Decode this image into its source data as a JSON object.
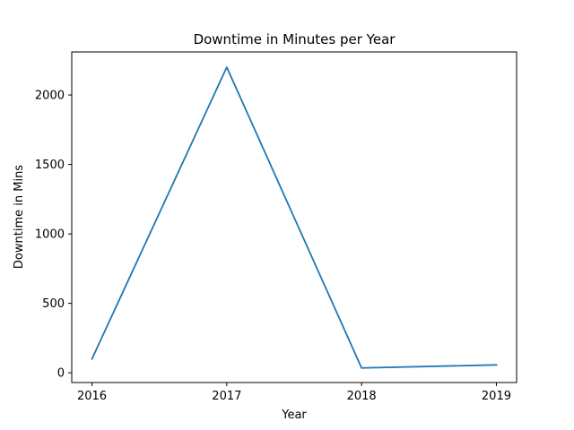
{
  "chart_data": {
    "type": "line",
    "title": "Downtime in Minutes per Year",
    "xlabel": "Year",
    "ylabel": "Downtime in Mins",
    "categories": [
      "2016",
      "2017",
      "2018",
      "2019"
    ],
    "series": [
      {
        "values": [
          100,
          2200,
          35,
          57
        ],
        "color": "#1f77b4"
      }
    ],
    "xlim": [
      -0.15,
      3.15
    ],
    "ylim": [
      -70,
      2310
    ],
    "yticks": [
      0,
      500,
      1000,
      1500,
      2000
    ],
    "grid": false,
    "legend": "none"
  }
}
